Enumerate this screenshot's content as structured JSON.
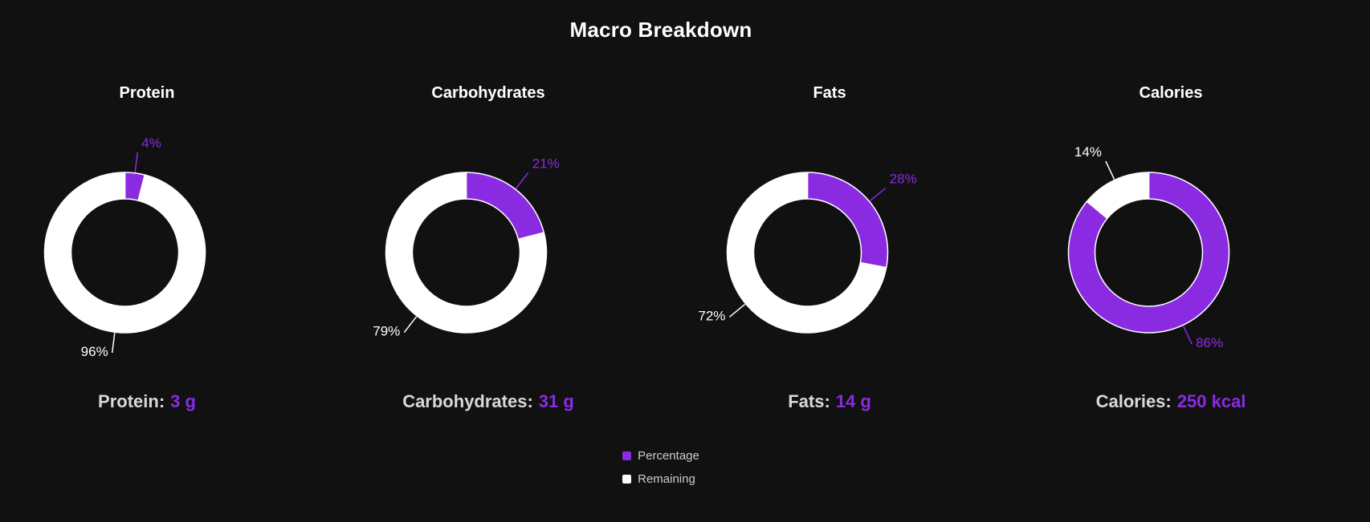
{
  "figure": {
    "title": "Macro Breakdown",
    "legend_position": "bottom-center"
  },
  "theme": {
    "background": "#111111",
    "accent": "#8a2be2",
    "remaining_color": "#ffffff",
    "title_color": "#ffffff",
    "summary_label_color": "#d9d9d9",
    "legend_text_color": "#cccccc"
  },
  "legend": {
    "items": [
      {
        "label": "Percentage",
        "color": "#8a2be2"
      },
      {
        "label": "Remaining",
        "color": "#ffffff"
      }
    ]
  },
  "chart_data": [
    {
      "type": "pie",
      "title": "Protein",
      "labels": [
        "Percentage",
        "Remaining"
      ],
      "values": [
        4,
        96
      ],
      "slice_labels": [
        "4%",
        "96%"
      ],
      "colors": [
        "#8a2be2",
        "#ffffff"
      ],
      "donut": true,
      "summary": {
        "label": "Protein:",
        "value": "3 g"
      }
    },
    {
      "type": "pie",
      "title": "Carbohydrates",
      "labels": [
        "Percentage",
        "Remaining"
      ],
      "values": [
        21,
        79
      ],
      "slice_labels": [
        "21%",
        "79%"
      ],
      "colors": [
        "#8a2be2",
        "#ffffff"
      ],
      "donut": true,
      "summary": {
        "label": "Carbohydrates:",
        "value": "31 g"
      }
    },
    {
      "type": "pie",
      "title": "Fats",
      "labels": [
        "Percentage",
        "Remaining"
      ],
      "values": [
        28,
        72
      ],
      "slice_labels": [
        "28%",
        "72%"
      ],
      "colors": [
        "#8a2be2",
        "#ffffff"
      ],
      "donut": true,
      "summary": {
        "label": "Fats:",
        "value": "14 g"
      }
    },
    {
      "type": "pie",
      "title": "Calories",
      "labels": [
        "Percentage",
        "Remaining"
      ],
      "values": [
        86,
        14
      ],
      "slice_labels": [
        "86%",
        "14%"
      ],
      "colors": [
        "#8a2be2",
        "#ffffff"
      ],
      "donut": true,
      "summary": {
        "label": "Calories:",
        "value": "250 kcal"
      }
    }
  ]
}
